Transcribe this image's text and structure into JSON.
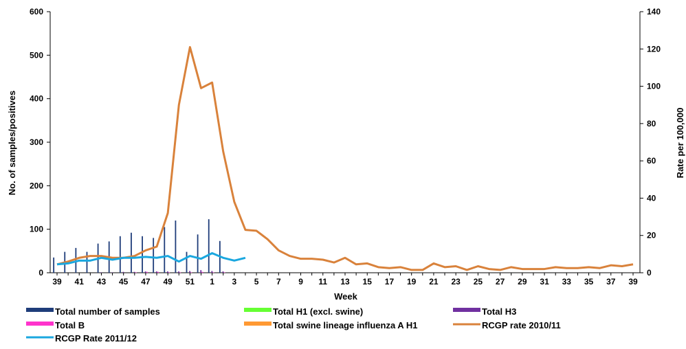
{
  "chart_data": {
    "type": "bar",
    "title": "",
    "xlabel": "Week",
    "ylabel_left": "No. of samples/positives",
    "ylabel_right": "Rate per 100,000",
    "ylim_left": [
      0,
      600
    ],
    "ylim_right": [
      0,
      140
    ],
    "yticks_left": [
      "0",
      "100",
      "200",
      "300",
      "400",
      "500",
      "600"
    ],
    "yticks_right": [
      "0",
      "20",
      "40",
      "60",
      "80",
      "100",
      "120",
      "140"
    ],
    "grid": false,
    "legend_position": "bottom",
    "weeks": [
      "39",
      "40",
      "41",
      "42",
      "43",
      "44",
      "45",
      "46",
      "47",
      "48",
      "49",
      "50",
      "51",
      "52",
      "1",
      "2",
      "3",
      "4",
      "5",
      "6",
      "7",
      "8",
      "9",
      "10",
      "11",
      "12",
      "13",
      "14",
      "15",
      "16",
      "17",
      "18",
      "19",
      "20",
      "21",
      "22",
      "23",
      "24",
      "25",
      "26",
      "27",
      "28",
      "29",
      "30",
      "31",
      "32",
      "33",
      "34",
      "35",
      "36",
      "37",
      "38",
      "39"
    ],
    "tick_labels": [
      "39",
      "41",
      "43",
      "45",
      "47",
      "49",
      "51",
      "1",
      "3",
      "5",
      "7",
      "9",
      "11",
      "13",
      "15",
      "17",
      "19",
      "21",
      "23",
      "25",
      "27",
      "29",
      "31",
      "33",
      "35",
      "37",
      "39"
    ],
    "bar_series": [
      {
        "name": "Total number of samples",
        "color": "#1f3d7a",
        "axis": "left",
        "values": [
          35,
          48,
          57,
          48,
          67,
          72,
          84,
          92,
          84,
          80,
          105,
          120,
          48,
          88,
          123,
          73
        ]
      },
      {
        "name": "Total H1 (excl. swine)",
        "color": "#66ff33",
        "axis": "left",
        "values": [
          0,
          0,
          0,
          0,
          0,
          0,
          0,
          0,
          0,
          0,
          0,
          0,
          0,
          0,
          0,
          0
        ]
      },
      {
        "name": "Total H3",
        "color": "#7030a0",
        "axis": "left",
        "values": [
          0,
          0,
          0,
          0,
          1,
          1,
          2,
          2,
          3,
          3,
          3,
          3,
          4,
          6,
          4,
          3
        ]
      },
      {
        "name": "Total B",
        "color": "#ff33cc",
        "axis": "left",
        "values": [
          0,
          0,
          0,
          0,
          0,
          0,
          0,
          1,
          2,
          2,
          1,
          1,
          1,
          2,
          1,
          1
        ]
      },
      {
        "name": "Total swine lineage influenza A H1",
        "color": "#ff9933",
        "axis": "left",
        "values": [
          0,
          0,
          0,
          0,
          0,
          0,
          0,
          0,
          0,
          0,
          0,
          0,
          0,
          0,
          0,
          0
        ]
      }
    ],
    "line_series": [
      {
        "name": "RCGP rate 2010/11",
        "color": "#d9823b",
        "axis": "right",
        "values": [
          4.5,
          6,
          8,
          9,
          9,
          8,
          8,
          9,
          12,
          14,
          32,
          90,
          121,
          99,
          102,
          65,
          38,
          23,
          22.5,
          18,
          12,
          9,
          7.5,
          7.5,
          7,
          5.5,
          8,
          4.5,
          5,
          3,
          2.5,
          3,
          1.5,
          1.5,
          5,
          3,
          3.5,
          1.5,
          3.5,
          2,
          1.5,
          3,
          2,
          2,
          2,
          3,
          2.5,
          2.5,
          3,
          2.5,
          4,
          3.5,
          4.5
        ]
      },
      {
        "name": "RCGP Rate 2011/12",
        "color": "#1aa7df",
        "axis": "right",
        "values": [
          4.5,
          5,
          6.5,
          6.5,
          8,
          7,
          8,
          8,
          8.5,
          8,
          9,
          6,
          9,
          7.5,
          10.5,
          8,
          6.5,
          8
        ]
      }
    ]
  }
}
